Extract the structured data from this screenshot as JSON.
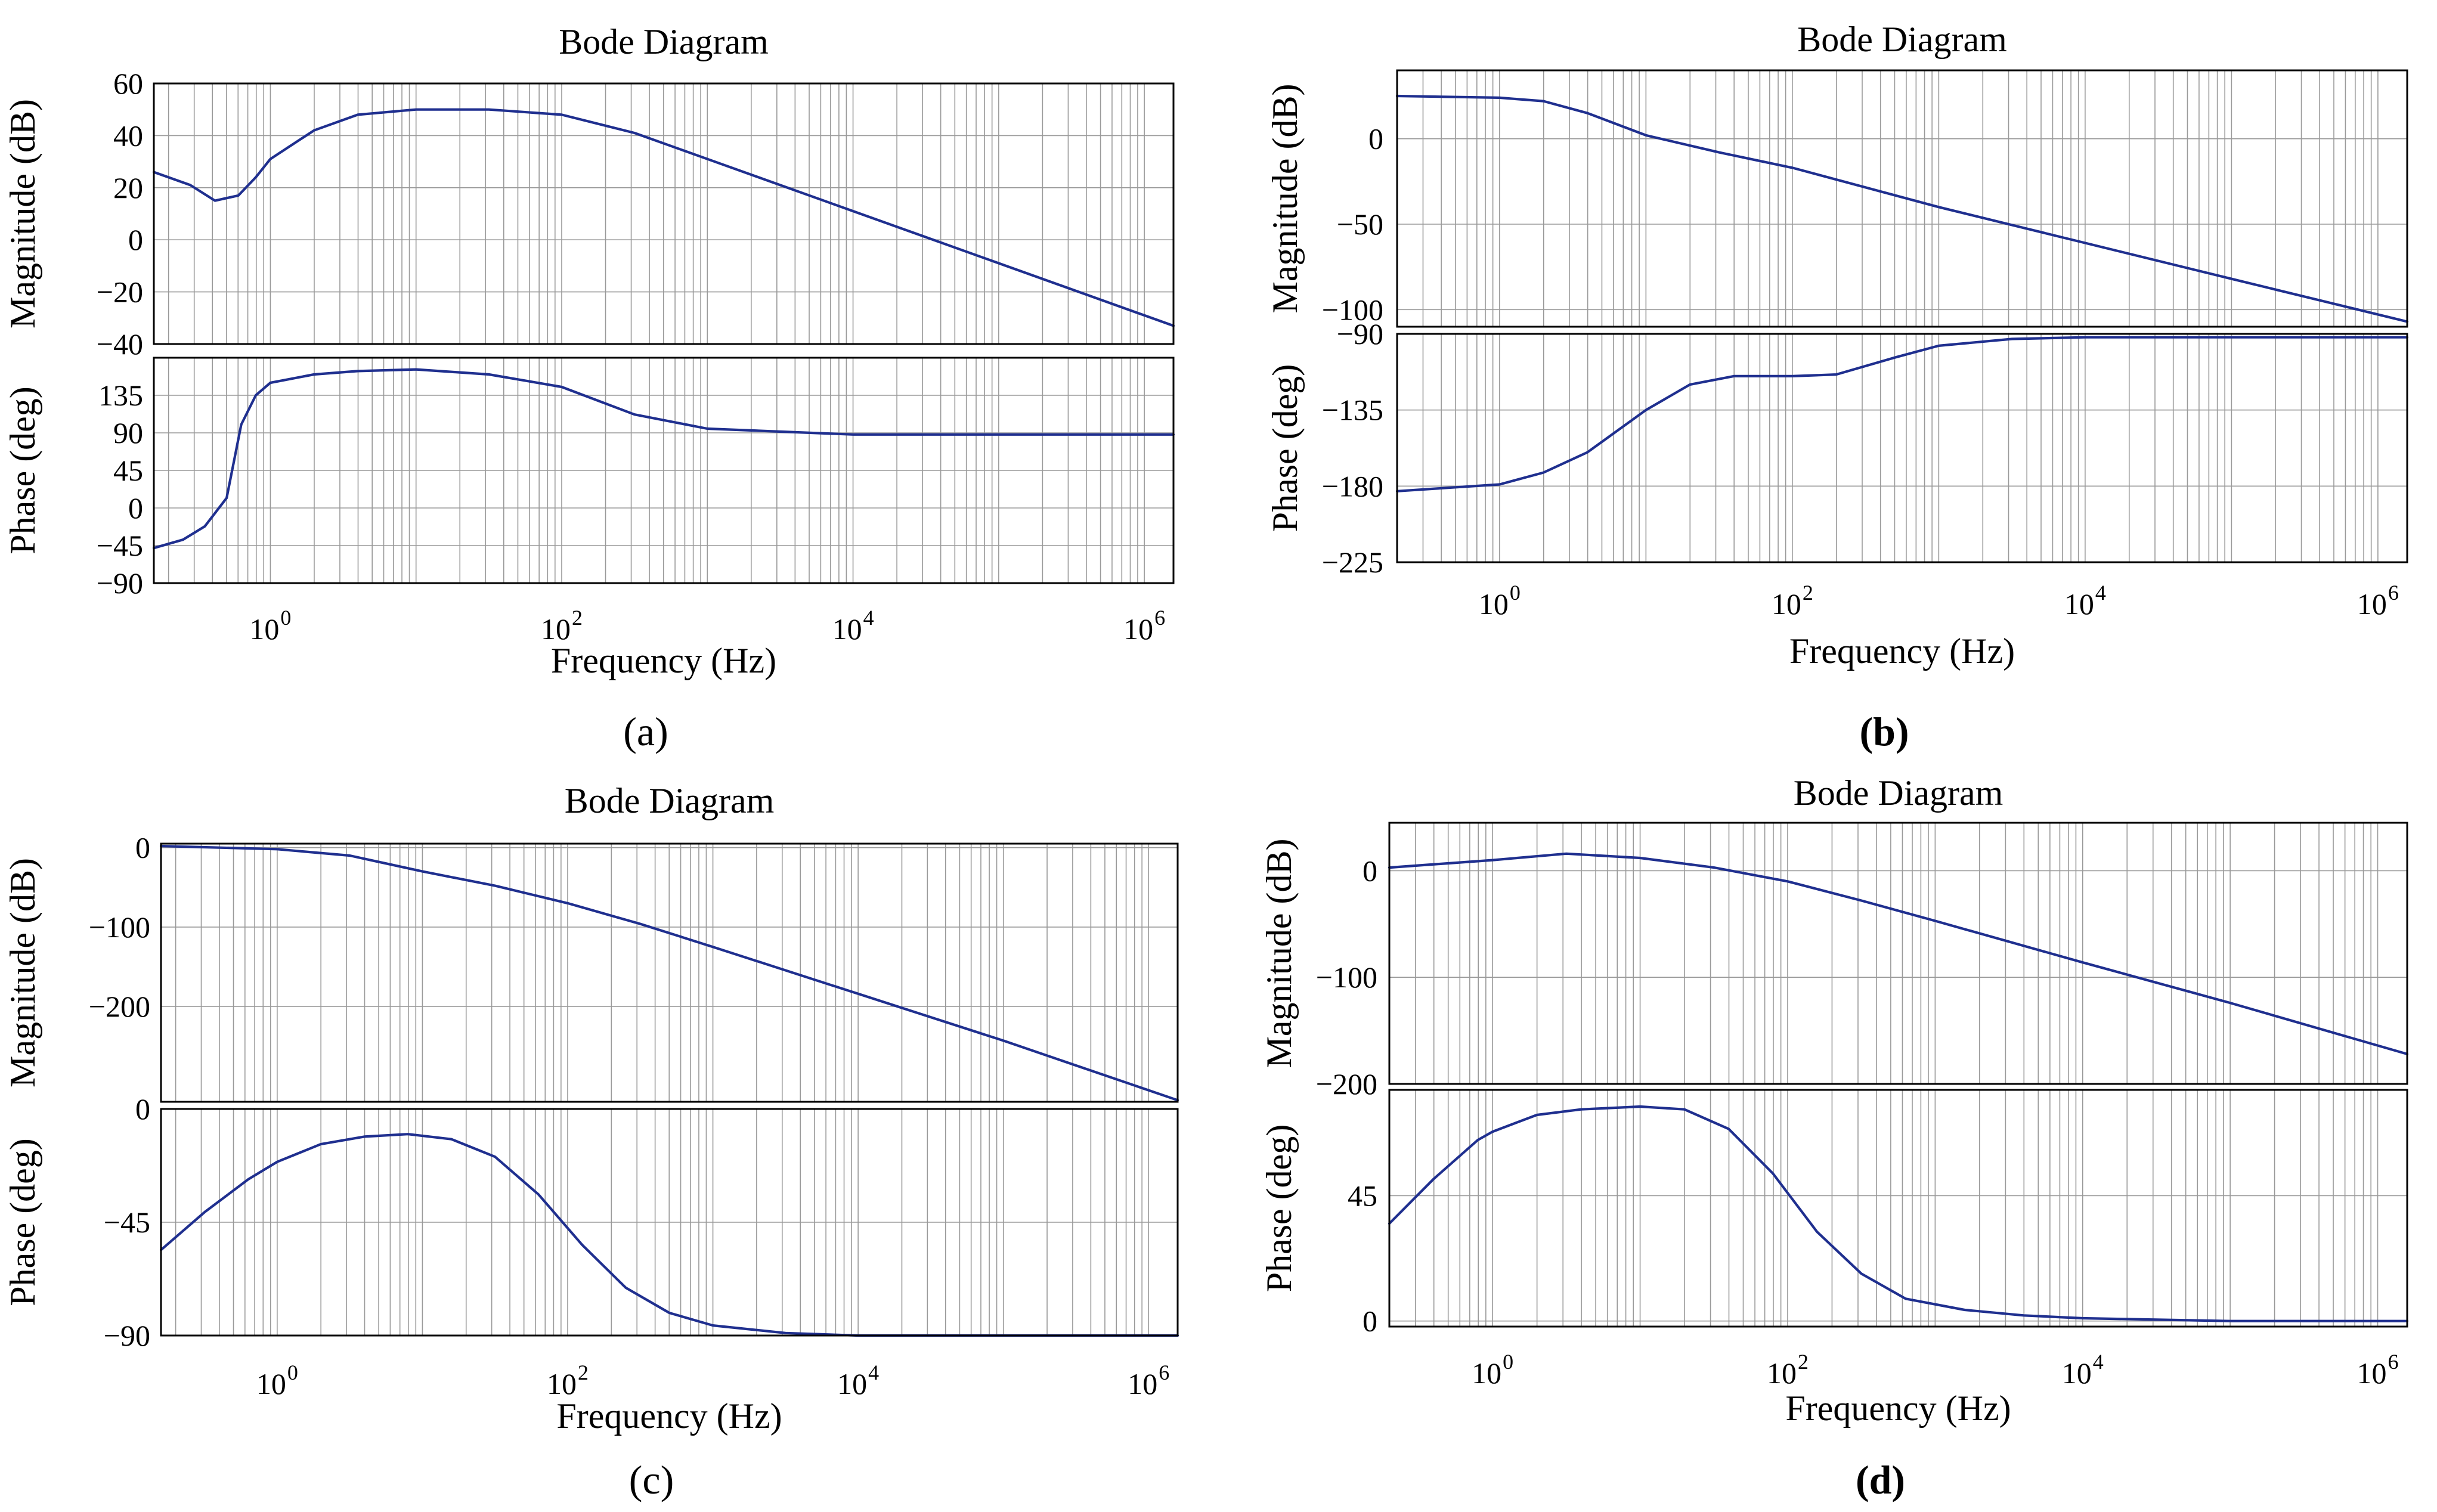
{
  "figure": {
    "line_color": "#1f2f8f",
    "grid_color": "#9a9a9a"
  },
  "chart_data": [
    {
      "type": "line",
      "panel": "a",
      "panel_label": "(a)",
      "title": "Bode Diagram",
      "xlabel": "Frequency (Hz)",
      "xscale": "log",
      "xlim_exp": [
        -0.8,
        6.2
      ],
      "x_ticks": [
        {
          "base": "10",
          "exp": "0",
          "value": 0
        },
        {
          "base": "10",
          "exp": "2",
          "value": 2
        },
        {
          "base": "10",
          "exp": "4",
          "value": 4
        },
        {
          "base": "10",
          "exp": "6",
          "value": 6
        }
      ],
      "magnitude": {
        "ylabel": "Magnitude (dB)",
        "ylim": [
          -40,
          60
        ],
        "yticks": [
          60,
          40,
          20,
          0,
          -20,
          -40
        ],
        "ytick_labels": [
          "60",
          "40",
          "20",
          "0",
          "−20",
          "−40"
        ],
        "series": [
          {
            "name": "magnitude",
            "x_exp": [
              -0.8,
              -0.55,
              -0.38,
              -0.22,
              -0.1,
              0,
              0.3,
              0.6,
              1,
              1.5,
              2,
              2.5,
              3,
              4,
              5,
              6,
              6.2
            ],
            "values": [
              26,
              21,
              15,
              17,
              24,
              31,
              42,
              48,
              50,
              50,
              48,
              41,
              31,
              11,
              -9,
              -29,
              -33
            ]
          }
        ]
      },
      "phase": {
        "ylabel": "Phase (deg)",
        "ylim": [
          -90,
          180
        ],
        "yticks": [
          135,
          90,
          45,
          0,
          -45,
          -90
        ],
        "ytick_labels": [
          "135",
          "90",
          "45",
          "0",
          "−45",
          "−90"
        ],
        "series": [
          {
            "name": "phase",
            "x_exp": [
              -0.8,
              -0.6,
              -0.45,
              -0.3,
              -0.2,
              -0.1,
              0,
              0.3,
              0.6,
              1,
              1.5,
              2,
              2.5,
              3,
              4,
              5,
              6.2
            ],
            "values": [
              -48,
              -38,
              -22,
              12,
              100,
              135,
              150,
              160,
              164,
              166,
              160,
              145,
              112,
              95,
              88,
              88,
              88
            ]
          }
        ]
      }
    },
    {
      "type": "line",
      "panel": "b",
      "panel_label": "(b)",
      "title": "Bode Diagram",
      "xlabel": "Frequency (Hz)",
      "xscale": "log",
      "xlim_exp": [
        -0.7,
        6.2
      ],
      "x_ticks": [
        {
          "base": "10",
          "exp": "0",
          "value": 0
        },
        {
          "base": "10",
          "exp": "2",
          "value": 2
        },
        {
          "base": "10",
          "exp": "4",
          "value": 4
        },
        {
          "base": "10",
          "exp": "6",
          "value": 6
        }
      ],
      "magnitude": {
        "ylabel": "Magnitude (dB)",
        "ylim": [
          -110,
          40
        ],
        "yticks": [
          0,
          -50,
          -100
        ],
        "ytick_labels": [
          "0",
          "−50",
          "−100"
        ],
        "series": [
          {
            "name": "magnitude",
            "x_exp": [
              -0.7,
              0,
              0.3,
              0.6,
              1,
              1.5,
              2,
              3,
              4,
              5,
              6.2
            ],
            "values": [
              25,
              24,
              22,
              15,
              2,
              -8,
              -17,
              -40,
              -61,
              -82,
              -107
            ]
          }
        ]
      },
      "phase": {
        "ylabel": "Phase (deg)",
        "ylim": [
          -225,
          -90
        ],
        "yticks": [
          -90,
          -135,
          -180,
          -225
        ],
        "ytick_labels": [
          "−90",
          "−135",
          "−180",
          "−225"
        ],
        "series": [
          {
            "name": "phase",
            "x_exp": [
              -0.7,
              0,
              0.3,
              0.6,
              1,
              1.3,
              1.6,
              2,
              2.3,
              2.7,
              3,
              3.5,
              4,
              5,
              6.2
            ],
            "values": [
              -183,
              -179,
              -172,
              -160,
              -135,
              -120,
              -115,
              -115,
              -114,
              -104,
              -97,
              -93,
              -92,
              -92,
              -92
            ]
          }
        ]
      }
    },
    {
      "type": "line",
      "panel": "c",
      "panel_label": "(c)",
      "title": "Bode Diagram",
      "xlabel": "Frequency (Hz)",
      "xscale": "log",
      "xlim_exp": [
        -0.8,
        6.2
      ],
      "x_ticks": [
        {
          "base": "10",
          "exp": "0",
          "value": 0
        },
        {
          "base": "10",
          "exp": "2",
          "value": 2
        },
        {
          "base": "10",
          "exp": "4",
          "value": 4
        },
        {
          "base": "10",
          "exp": "6",
          "value": 6
        }
      ],
      "magnitude": {
        "ylabel": "Magnitude (dB)",
        "ylim": [
          -320,
          5
        ],
        "yticks": [
          0,
          -100,
          -200
        ],
        "ytick_labels": [
          "0",
          "−100",
          "−200"
        ],
        "series": [
          {
            "name": "magnitude",
            "x_exp": [
              -0.8,
              0,
              0.5,
              1,
              1.5,
              2,
              2.5,
              3,
              4,
              5,
              6.2
            ],
            "values": [
              2,
              -2,
              -10,
              -30,
              -48,
              -70,
              -96,
              -125,
              -184,
              -243,
              -318
            ]
          }
        ]
      },
      "phase": {
        "ylabel": "Phase (deg)",
        "ylim": [
          -90,
          0
        ],
        "yticks": [
          0,
          -45,
          -90
        ],
        "ytick_labels": [
          "0",
          "−45",
          "−90"
        ],
        "series": [
          {
            "name": "phase",
            "x_exp": [
              -0.8,
              -0.5,
              -0.2,
              0,
              0.3,
              0.6,
              0.9,
              1.2,
              1.5,
              1.8,
              2.1,
              2.4,
              2.7,
              3,
              3.5,
              4,
              5,
              6.2
            ],
            "values": [
              -56,
              -41,
              -28,
              -21,
              -14,
              -11,
              -10,
              -12,
              -19,
              -34,
              -54,
              -71,
              -81,
              -86,
              -89,
              -90,
              -90,
              -90
            ]
          }
        ]
      }
    },
    {
      "type": "line",
      "panel": "d",
      "panel_label": "(d)",
      "title": "Bode Diagram",
      "xlabel": "Frequency (Hz)",
      "xscale": "log",
      "xlim_exp": [
        -0.7,
        6.2
      ],
      "x_ticks": [
        {
          "base": "10",
          "exp": "0",
          "value": 0
        },
        {
          "base": "10",
          "exp": "2",
          "value": 2
        },
        {
          "base": "10",
          "exp": "4",
          "value": 4
        },
        {
          "base": "10",
          "exp": "6",
          "value": 6
        }
      ],
      "magnitude": {
        "ylabel": "Magnitude (dB)",
        "ylim": [
          -200,
          45
        ],
        "yticks": [
          0,
          -100,
          -200
        ],
        "ytick_labels": [
          "0",
          "−100",
          "−200"
        ],
        "series": [
          {
            "name": "magnitude",
            "x_exp": [
              -0.7,
              0,
              0.5,
              1,
              1.5,
              2,
              2.5,
              3,
              4,
              5,
              6.2
            ],
            "values": [
              3,
              10,
              16,
              12,
              3,
              -10,
              -28,
              -47,
              -86,
              -124,
              -172
            ]
          }
        ]
      },
      "phase": {
        "ylabel": "Phase (deg)",
        "ylim": [
          -2,
          83
        ],
        "yticks": [
          45,
          0
        ],
        "ytick_labels": [
          "45",
          "0"
        ],
        "series": [
          {
            "name": "phase",
            "x_exp": [
              -0.7,
              -0.4,
              -0.1,
              0,
              0.3,
              0.6,
              1,
              1.3,
              1.6,
              1.9,
              2.2,
              2.5,
              2.8,
              3.2,
              3.6,
              4,
              5,
              6.2
            ],
            "values": [
              35,
              51,
              65,
              68,
              74,
              76,
              77,
              76,
              69,
              53,
              32,
              17,
              8,
              4,
              2,
              1,
              0,
              0
            ]
          }
        ]
      }
    }
  ]
}
